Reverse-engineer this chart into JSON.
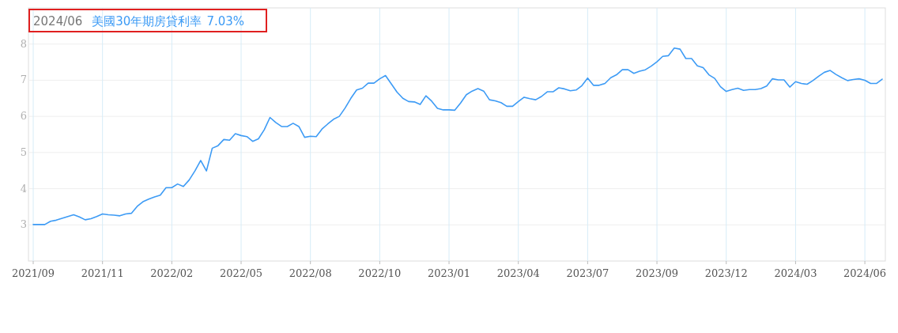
{
  "chart_data": {
    "type": "line",
    "title": "2024/06",
    "annotations": [
      "7.03%"
    ],
    "categories": [
      "2021/09",
      null,
      null,
      null,
      null,
      null,
      null,
      null,
      null,
      null,
      null,
      null,
      "2021/11",
      null,
      null,
      null,
      null,
      null,
      null,
      null,
      null,
      null,
      null,
      null,
      "2022/02",
      null,
      null,
      null,
      null,
      null,
      null,
      null,
      null,
      null,
      null,
      null,
      "2022/05",
      null,
      null,
      null,
      null,
      null,
      null,
      null,
      null,
      null,
      null,
      null,
      "2022/08",
      null,
      null,
      null,
      null,
      null,
      null,
      null,
      null,
      null,
      null,
      null,
      "2022/10",
      null,
      null,
      null,
      null,
      null,
      null,
      null,
      null,
      null,
      null,
      null,
      "2023/01",
      null,
      null,
      null,
      null,
      null,
      null,
      null,
      null,
      null,
      null,
      null,
      "2023/04",
      null,
      null,
      null,
      null,
      null,
      null,
      null,
      null,
      null,
      null,
      null,
      "2023/07",
      null,
      null,
      null,
      null,
      null,
      null,
      null,
      null,
      null,
      null,
      null,
      "2023/09",
      null,
      null,
      null,
      null,
      null,
      null,
      null,
      null,
      null,
      null,
      null,
      "2023/12",
      null,
      null,
      null,
      null,
      null,
      null,
      null,
      null,
      null,
      null,
      null,
      "2024/03",
      null,
      null,
      null,
      null,
      null,
      null,
      null,
      null,
      null,
      null,
      null,
      "2024/06",
      null,
      null,
      null
    ],
    "series": [
      {
        "name": "美國30年期房貸利率",
        "color": "#3d9bf5",
        "values": [
          3.01,
          3.01,
          3.01,
          3.1,
          3.13,
          3.18,
          3.23,
          3.28,
          3.22,
          3.14,
          3.17,
          3.23,
          3.3,
          3.28,
          3.27,
          3.25,
          3.3,
          3.32,
          3.51,
          3.64,
          3.71,
          3.77,
          3.82,
          4.03,
          4.03,
          4.13,
          4.06,
          4.24,
          4.49,
          4.78,
          4.49,
          5.12,
          5.19,
          5.36,
          5.34,
          5.52,
          5.47,
          5.44,
          5.31,
          5.38,
          5.63,
          5.97,
          5.83,
          5.72,
          5.72,
          5.81,
          5.72,
          5.42,
          5.45,
          5.44,
          5.65,
          5.79,
          5.92,
          6.0,
          6.23,
          6.5,
          6.73,
          6.78,
          6.92,
          6.92,
          7.04,
          7.13,
          6.9,
          6.67,
          6.5,
          6.41,
          6.4,
          6.33,
          6.57,
          6.42,
          6.22,
          6.18,
          6.18,
          6.17,
          6.37,
          6.6,
          6.7,
          6.77,
          6.7,
          6.46,
          6.43,
          6.38,
          6.28,
          6.28,
          6.41,
          6.53,
          6.49,
          6.46,
          6.55,
          6.68,
          6.68,
          6.79,
          6.76,
          6.71,
          6.73,
          6.85,
          7.06,
          6.86,
          6.86,
          6.91,
          7.07,
          7.15,
          7.29,
          7.29,
          7.19,
          7.25,
          7.29,
          7.39,
          7.51,
          7.66,
          7.68,
          7.89,
          7.86,
          7.6,
          7.6,
          7.4,
          7.35,
          7.15,
          7.05,
          6.82,
          6.69,
          6.74,
          6.78,
          6.72,
          6.74,
          6.74,
          6.77,
          6.84,
          7.04,
          7.01,
          7.01,
          6.81,
          6.96,
          6.91,
          6.89,
          6.99,
          7.11,
          7.22,
          7.27,
          7.16,
          7.07,
          6.99,
          7.02,
          7.04,
          7.0,
          6.91,
          6.91,
          7.03
        ]
      }
    ],
    "ylim": [
      2,
      9
    ],
    "yticks": [
      3,
      4,
      5,
      6,
      7,
      8
    ],
    "grid": true,
    "legend": "top left",
    "line_style": "solid"
  }
}
